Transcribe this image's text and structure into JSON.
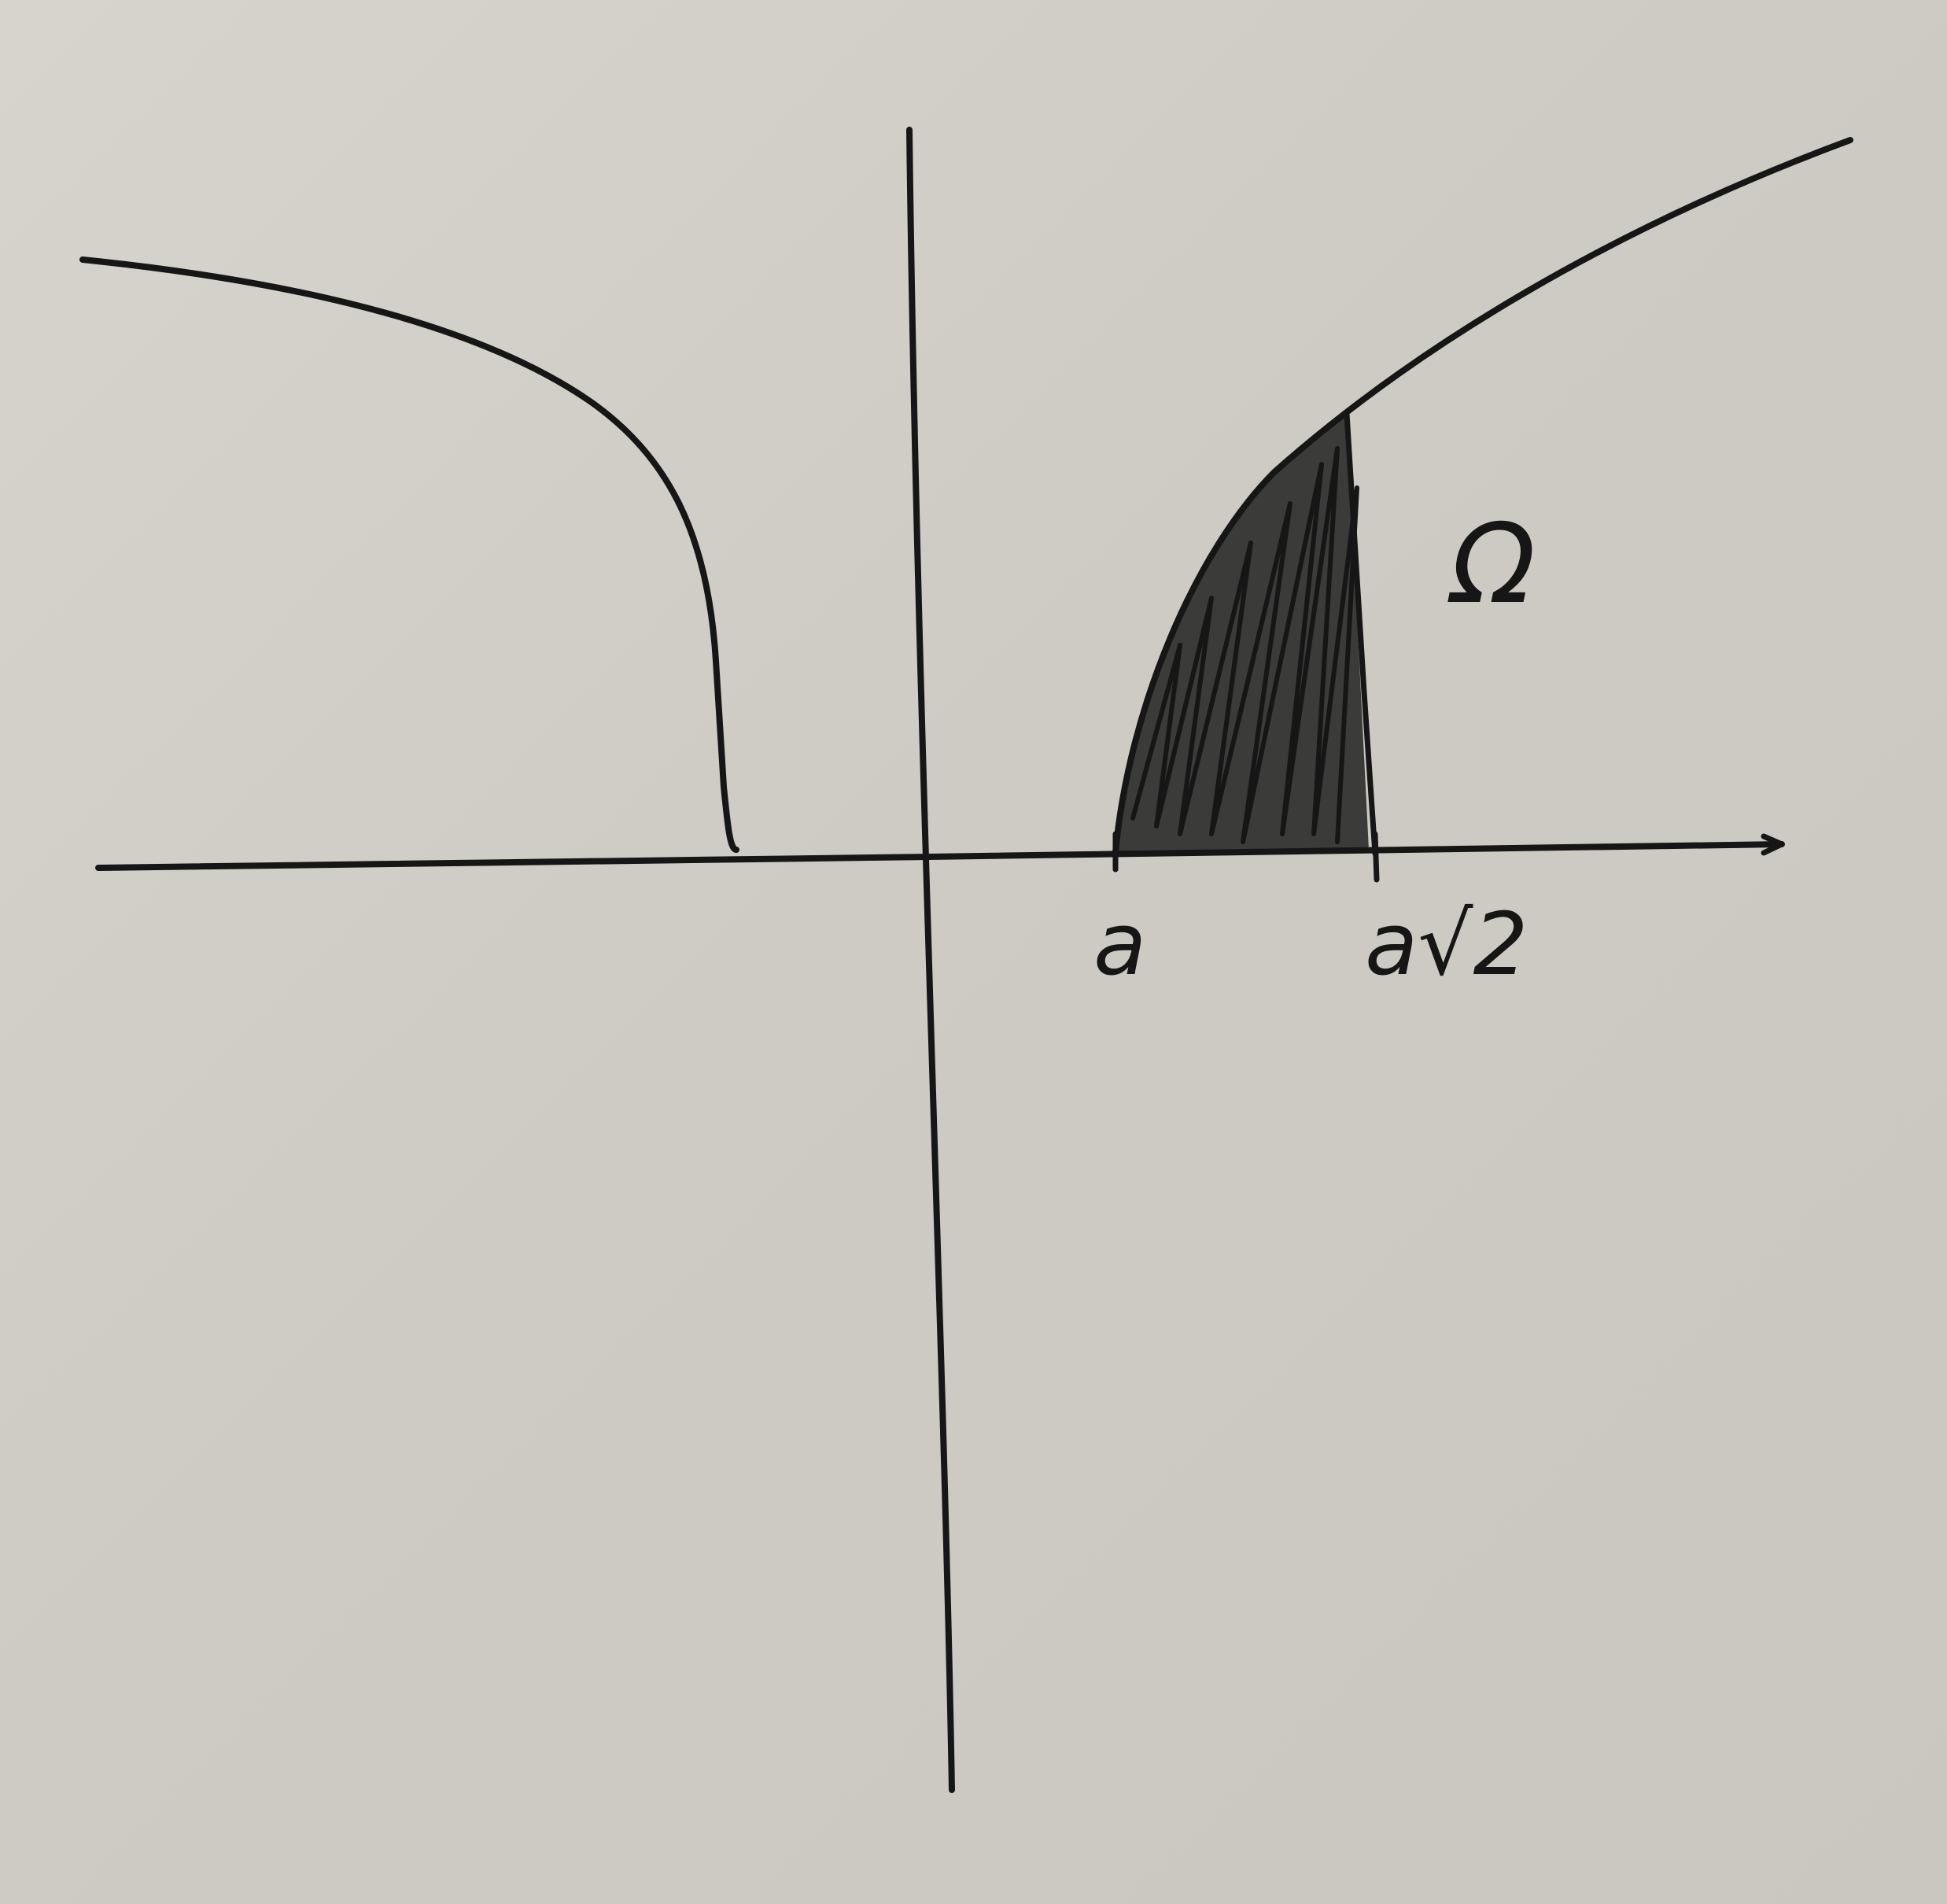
{
  "diagram": {
    "region_label": "Ω",
    "tick_labels": {
      "left_bound": "a",
      "right_bound": "a√2"
    },
    "colors": {
      "paper": "#cfcdc6",
      "ink": "#161616"
    }
  }
}
